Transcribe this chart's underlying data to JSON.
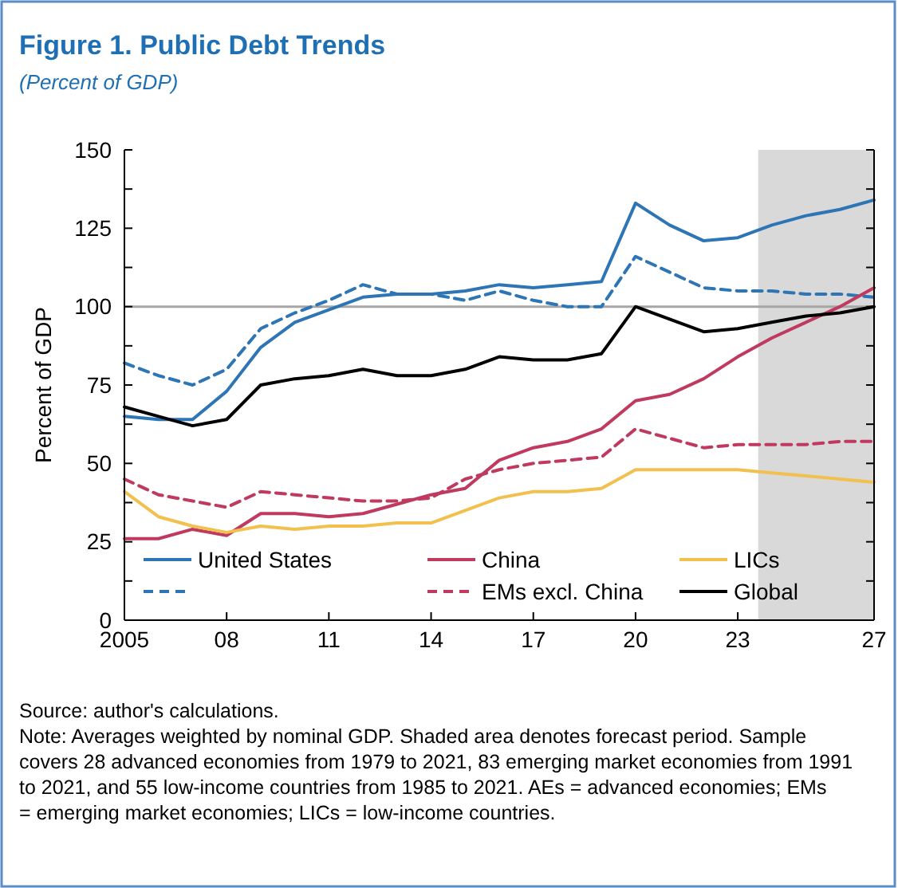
{
  "chart_data": {
    "type": "line",
    "title": "Figure 1.  Public Debt Trends",
    "subtitle": "(Percent of GDP)",
    "ylabel": "Percent of GDP",
    "x": [
      2005,
      2006,
      2007,
      2008,
      2009,
      2010,
      2011,
      2012,
      2013,
      2014,
      2015,
      2016,
      2017,
      2018,
      2019,
      2020,
      2021,
      2022,
      2023,
      2024,
      2025,
      2026,
      2027
    ],
    "xlim": [
      2005,
      2027
    ],
    "xticks": [
      {
        "value": 2005,
        "label": "2005"
      },
      {
        "value": 2008,
        "label": "08"
      },
      {
        "value": 2011,
        "label": "11"
      },
      {
        "value": 2014,
        "label": "14"
      },
      {
        "value": 2017,
        "label": "17"
      },
      {
        "value": 2020,
        "label": "20"
      },
      {
        "value": 2023,
        "label": "23"
      },
      {
        "value": 2027,
        "label": "27"
      }
    ],
    "ylim": [
      0,
      150
    ],
    "yticks": [
      0,
      {
        "value": 12.5,
        "label": null
      },
      25,
      {
        "value": 37.5,
        "label": null
      },
      50,
      {
        "value": 62.5,
        "label": null
      },
      75,
      {
        "value": 87.5,
        "label": null
      },
      100,
      {
        "value": 112.5,
        "label": null
      },
      125,
      {
        "value": 137.5,
        "label": null
      },
      150
    ],
    "series": [
      {
        "name": "United States",
        "color": "#2e75b6",
        "line_style": "solid",
        "values": [
          65,
          64,
          64,
          73,
          87,
          95,
          99,
          103,
          104,
          104,
          105,
          107,
          106,
          107,
          108,
          133,
          126,
          121,
          122,
          126,
          129,
          131,
          134
        ]
      },
      {
        "color": "#2e75b6",
        "line_style": "dashed",
        "values": [
          82,
          78,
          75,
          80,
          93,
          98,
          102,
          107,
          104,
          104,
          102,
          105,
          102,
          100,
          100,
          116,
          111,
          106,
          105,
          105,
          104,
          104,
          103
        ]
      },
      {
        "name": "China",
        "color": "#c0395e",
        "line_style": "solid",
        "values": [
          26,
          26,
          29,
          27,
          34,
          34,
          33,
          34,
          37,
          40,
          42,
          51,
          55,
          57,
          61,
          70,
          72,
          77,
          84,
          90,
          95,
          100,
          106
        ]
      },
      {
        "name": "EMs excl. China",
        "color": "#c0395e",
        "line_style": "dashed",
        "values": [
          45,
          40,
          38,
          36,
          41,
          40,
          39,
          38,
          38,
          39,
          45,
          48,
          50,
          51,
          52,
          61,
          58,
          55,
          56,
          56,
          56,
          57,
          57
        ]
      },
      {
        "name": "LICs",
        "color": "#f2c04f",
        "line_style": "solid",
        "values": [
          41,
          33,
          30,
          28,
          30,
          29,
          30,
          30,
          31,
          31,
          35,
          39,
          41,
          41,
          42,
          48,
          48,
          48,
          48,
          47,
          46,
          45,
          44
        ]
      },
      {
        "name": "Global",
        "color": "#000000",
        "line_style": "solid",
        "values": [
          68,
          65,
          62,
          64,
          75,
          77,
          78,
          80,
          78,
          78,
          80,
          84,
          83,
          83,
          85,
          100,
          96,
          92,
          93,
          95,
          97,
          98,
          100
        ]
      }
    ],
    "ref_lines": [
      {
        "axis": "y",
        "value": 100,
        "color": "#a6a6a6"
      }
    ],
    "bands": [
      {
        "axis": "x",
        "from": 2023.6,
        "to": 2027,
        "color": "#d9d9d9"
      }
    ],
    "grid": false,
    "legend": "bottom",
    "annotations": [
      "Source: author's calculations.",
      "Note: Averages weighted by nominal GDP. Shaded area denotes forecast period. Sample covers 28 advanced economies from 1979 to 2021, 83 emerging market economies from 1991 to 2021, and 55 low-income countries from 1985 to 2021. AEs = advanced economies; EMs = emerging market economies; LICs = low-income countries."
    ]
  }
}
